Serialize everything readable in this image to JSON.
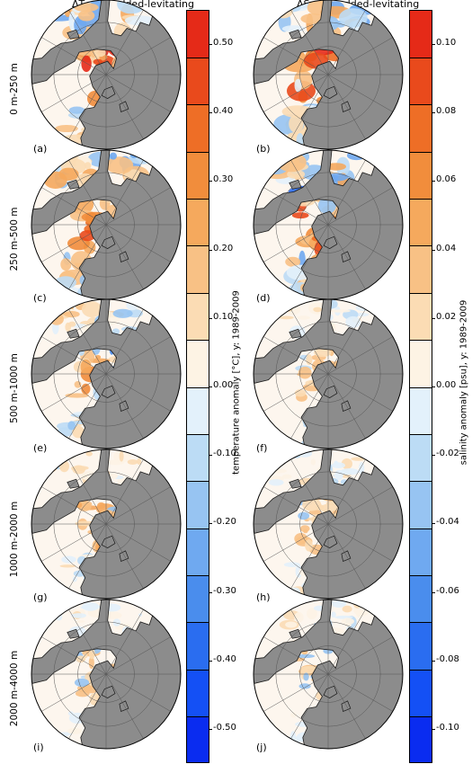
{
  "titles": {
    "left": "ΔT, embedded-levitating",
    "right": "ΔS, embedded-levitating"
  },
  "rows": [
    {
      "depth": "0 m-250 m",
      "left_letter": "(a)",
      "right_letter": "(b)"
    },
    {
      "depth": "250 m-500 m",
      "left_letter": "(c)",
      "right_letter": "(d)"
    },
    {
      "depth": "500 m-1000 m",
      "left_letter": "(e)",
      "right_letter": "(f)"
    },
    {
      "depth": "1000 m-2000 m",
      "left_letter": "(g)",
      "right_letter": "(h)"
    },
    {
      "depth": "2000 m-4000 m",
      "left_letter": "(i)",
      "right_letter": "(j)"
    }
  ],
  "colorbars": {
    "temperature": {
      "label": "temperature anomaly  [°C], y: 1989-2009",
      "range": [
        -0.55,
        0.55
      ],
      "ticks": [
        "0.50",
        "0.40",
        "0.30",
        "0.20",
        "0.10",
        "0.00",
        "-0.10",
        "-0.20",
        "-0.30",
        "-0.40",
        "-0.50"
      ],
      "tick_values": [
        0.5,
        0.4,
        0.3,
        0.2,
        0.1,
        0.0,
        -0.1,
        -0.2,
        -0.3,
        -0.4,
        -0.5
      ]
    },
    "salinity": {
      "label": "salinity anomaly  [psu], y: 1989-2009",
      "range": [
        -0.11,
        0.11
      ],
      "ticks": [
        "0.10",
        "0.08",
        "0.06",
        "0.04",
        "0.02",
        "0.00",
        "-0.02",
        "-0.04",
        "-0.06",
        "-0.08",
        "-0.10"
      ],
      "tick_values": [
        0.1,
        0.08,
        0.06,
        0.04,
        0.02,
        0.0,
        -0.02,
        -0.04,
        -0.06,
        -0.08,
        -0.1
      ]
    }
  },
  "colors": {
    "land": "#8c8c8c",
    "ocean_neutral": "#fdf6ee",
    "levels": [
      "#0a2cf0",
      "#1450f5",
      "#2a6df0",
      "#4a8ded",
      "#6fa9f0",
      "#97c4f2",
      "#bcdcf5",
      "#e3f1fb",
      "#fdf3e4",
      "#fbdcb4",
      "#f8c185",
      "#f5a95d",
      "#f18d3c",
      "#ee6e26",
      "#e94a1c",
      "#e52a18"
    ]
  },
  "chart_data": {
    "type": "heatmap",
    "projection": "north polar stereographic",
    "panels_per_row": 2,
    "rows": 5,
    "series": [
      {
        "name": "ΔT, embedded-levitating",
        "units": "°C",
        "range": [
          -0.55,
          0.55
        ],
        "intensity_by_row": [
          1.0,
          0.9,
          0.55,
          0.35,
          0.15
        ]
      },
      {
        "name": "ΔS, embedded-levitating",
        "units": "psu",
        "range": [
          -0.11,
          0.11
        ],
        "intensity_by_row": [
          1.0,
          0.85,
          0.25,
          0.22,
          0.22
        ]
      }
    ]
  }
}
